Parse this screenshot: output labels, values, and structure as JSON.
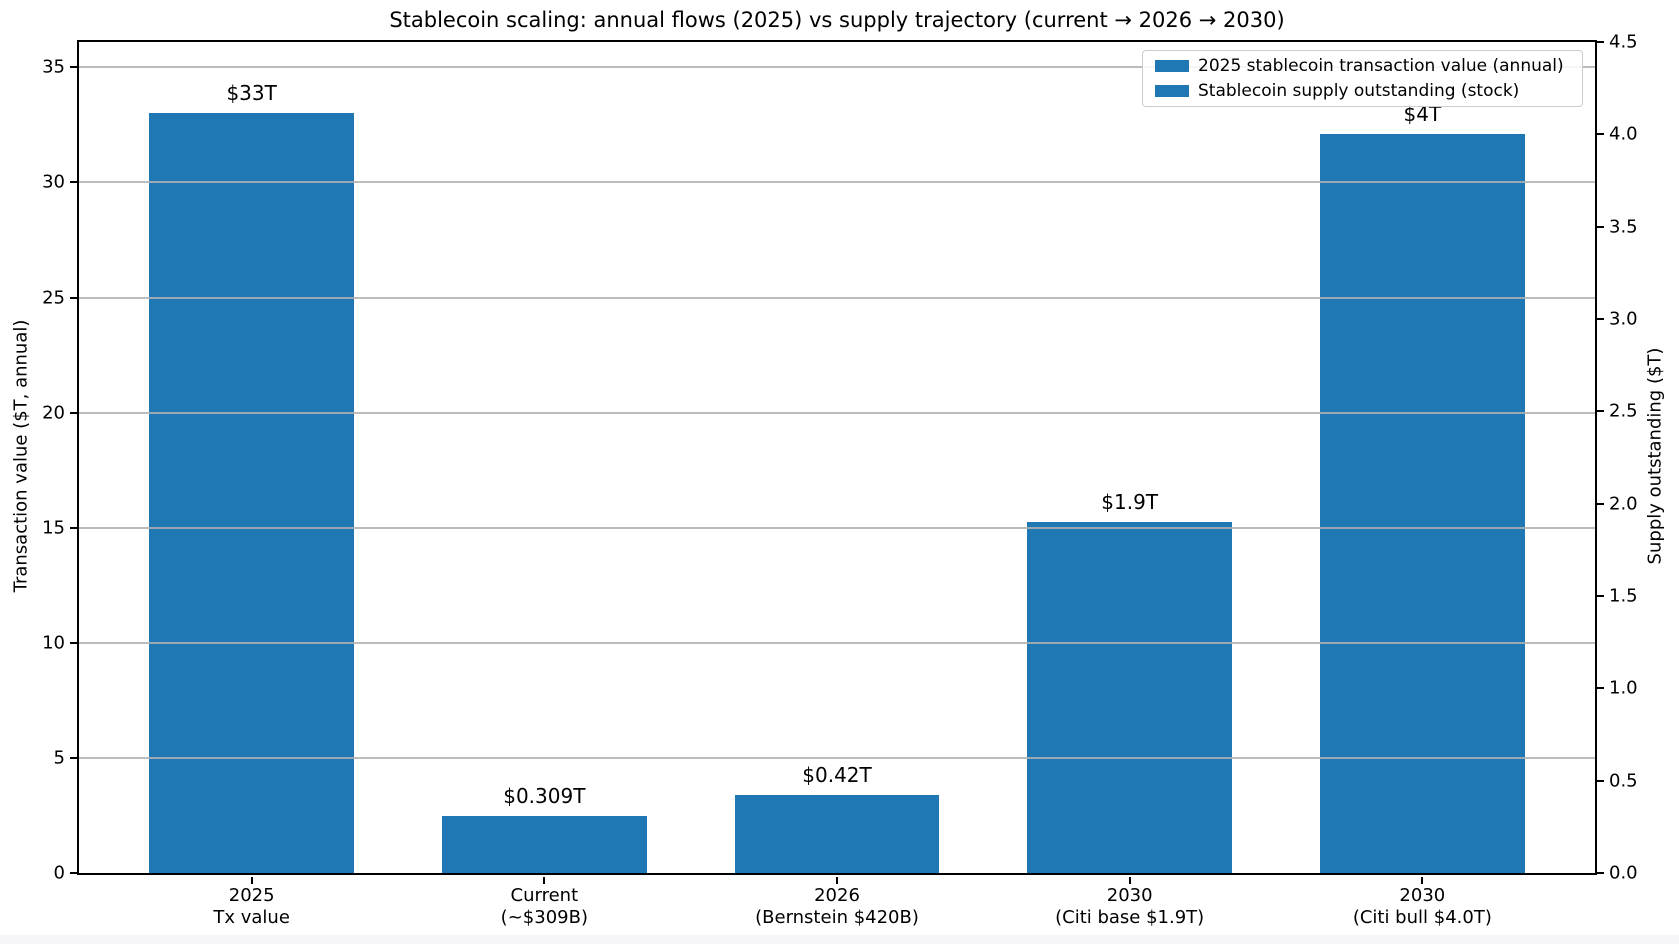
{
  "chart_data": {
    "type": "bar",
    "title": "Stablecoin scaling: annual flows (2025) vs supply trajectory (current → 2026 → 2030)",
    "left_axis": {
      "label": "Transaction value ($T, annual)",
      "ticks": [
        "0",
        "5",
        "10",
        "15",
        "20",
        "25",
        "30",
        "35"
      ],
      "tick_values": [
        0,
        5,
        10,
        15,
        20,
        25,
        30,
        35
      ],
      "range": [
        0,
        36.1
      ]
    },
    "right_axis": {
      "label": "Supply outstanding ($T)",
      "ticks": [
        "0.0",
        "0.5",
        "1.0",
        "1.5",
        "2.0",
        "2.5",
        "3.0",
        "3.5",
        "4.0",
        "4.5"
      ],
      "tick_values": [
        0,
        0.5,
        1,
        1.5,
        2,
        2.5,
        3,
        3.5,
        4,
        4.5
      ],
      "range": [
        0,
        4.5
      ]
    },
    "legend": {
      "position": "upper right",
      "items": [
        {
          "label": "2025 stablecoin transaction value (annual)",
          "color": "#1f77b4"
        },
        {
          "label": "Stablecoin supply outstanding (stock)",
          "color": "#1f77b4"
        }
      ]
    },
    "bars": [
      {
        "category_line1": "2025",
        "category_line2": "Tx value",
        "value": 33,
        "axis": "left",
        "data_label": "$33T"
      },
      {
        "category_line1": "Current",
        "category_line2": "(~$309B)",
        "value": 0.309,
        "axis": "right",
        "data_label": "$0.309T"
      },
      {
        "category_line1": "2026",
        "category_line2": "(Bernstein $420B)",
        "value": 0.42,
        "axis": "right",
        "data_label": "$0.42T"
      },
      {
        "category_line1": "2030",
        "category_line2": "(Citi base $1.9T)",
        "value": 1.9,
        "axis": "right",
        "data_label": "$1.9T"
      },
      {
        "category_line1": "2030",
        "category_line2": "(Citi bull $4.0T)",
        "value": 4.0,
        "axis": "right",
        "data_label": "$4T"
      }
    ],
    "layout": {
      "x_min": -0.59,
      "x_max": 4.59,
      "bar_width": 0.7,
      "grid": "horizontal-at-left-axis-ticks-over-bars",
      "bar_color": "#1f77b4",
      "grid_color": "#b0b0b0",
      "legend_position": "upper-right"
    }
  }
}
